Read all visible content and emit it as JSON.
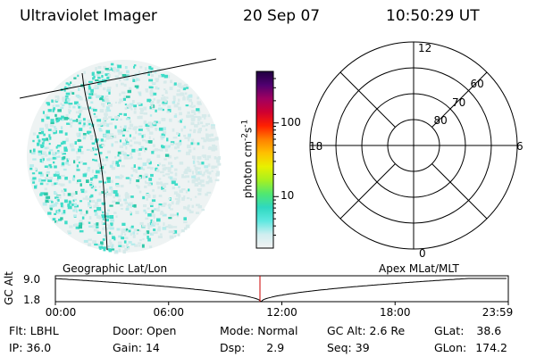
{
  "header": {
    "instrument": "Ultraviolet Imager",
    "date": "20 Sep 07",
    "time": "10:50:29 UT"
  },
  "colorbar": {
    "unit_prefix": "photon cm",
    "unit_exp1": "-2",
    "unit_mid": "s",
    "unit_exp2": "-1",
    "ticks": [
      {
        "label": "100",
        "value": 100
      },
      {
        "label": "10",
        "value": 10
      }
    ]
  },
  "polar_plot": {
    "mlt_labels": {
      "top": "12",
      "left": "18",
      "right": "6",
      "bottom": "0"
    },
    "lat_labels": [
      {
        "label": "60",
        "lat": 60
      },
      {
        "label": "70",
        "lat": 70
      },
      {
        "label": "80",
        "lat": 80
      }
    ]
  },
  "projection_labels": {
    "left": "Geographic Lat/Lon",
    "right": "Apex MLat/MLT"
  },
  "orbit_plot": {
    "ylabel": "GC Alt",
    "yticks": [
      "9.0",
      "1.8"
    ],
    "xticks": [
      "00:00",
      "06:00",
      "12:00",
      "18:00",
      "23:59"
    ],
    "current_time_hours": 10.84
  },
  "info": [
    [
      {
        "label": "Flt:",
        "value": "LBHL"
      },
      {
        "label": "Door:",
        "value": "Open"
      },
      {
        "label": "Mode:",
        "value": "Normal"
      },
      {
        "label": "GC Alt:",
        "value": "2.6 Re"
      },
      {
        "label": "GLat:",
        "value": "38.6"
      }
    ],
    [
      {
        "label": "IP:",
        "value": "36.0"
      },
      {
        "label": "Gain:",
        "value": "14"
      },
      {
        "label": "Dsp:",
        "value": "2.9"
      },
      {
        "label": "Seq:",
        "value": "39"
      },
      {
        "label": "GLon:",
        "value": "174.2"
      }
    ]
  ],
  "colors": {
    "colorbar_stops": [
      "#f2f2f2",
      "#d0eef0",
      "#5ee8e0",
      "#2fd8c0",
      "#50e870",
      "#a8f020",
      "#e8f000",
      "#ffc000",
      "#ff8000",
      "#ff2000",
      "#d00030",
      "#a00060",
      "#500070",
      "#200040"
    ],
    "marker": "#cc0000"
  }
}
